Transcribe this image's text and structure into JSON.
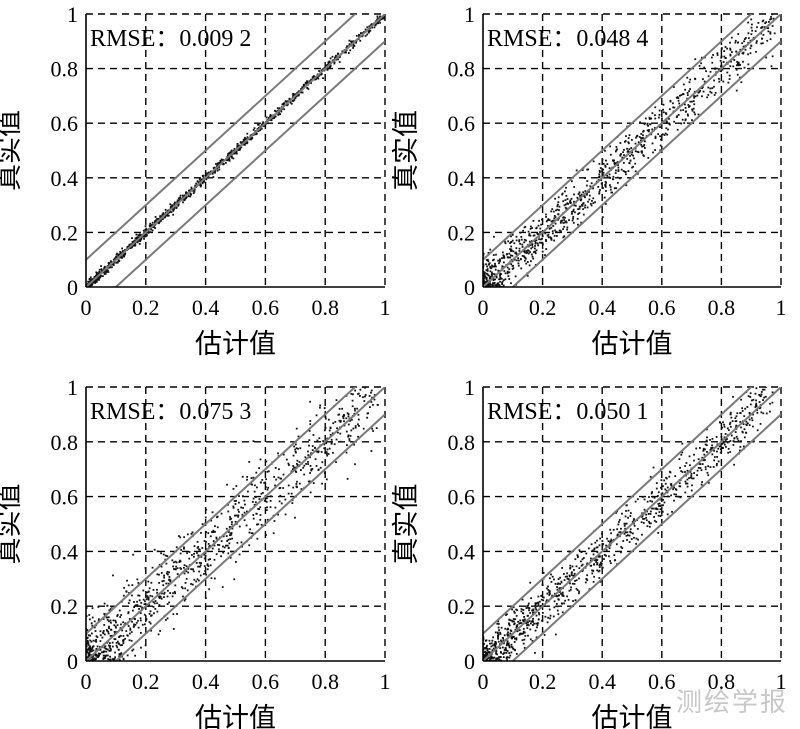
{
  "watermark": "测绘学报",
  "chart_data": [
    {
      "type": "scatter",
      "xlabel": "估计值",
      "ylabel": "真实值",
      "xlim": [
        0,
        1
      ],
      "ylim": [
        0,
        1
      ],
      "xticks": [
        "0",
        "0.2",
        "0.4",
        "0.6",
        "0.8",
        "1"
      ],
      "yticks": [
        "0",
        "0.2",
        "0.4",
        "0.6",
        "0.8",
        "1"
      ],
      "grid": true,
      "annotation": "RMSE：0.009 2",
      "rmse": 0.0092,
      "reference_lines": [
        {
          "intercept": 0.1,
          "slope": 1
        },
        {
          "intercept": 0,
          "slope": 1
        },
        {
          "intercept": -0.1,
          "slope": 1
        }
      ]
    },
    {
      "type": "scatter",
      "xlabel": "估计值",
      "ylabel": "真实值",
      "xlim": [
        0,
        1
      ],
      "ylim": [
        0,
        1
      ],
      "xticks": [
        "0",
        "0.2",
        "0.4",
        "0.6",
        "0.8",
        "1"
      ],
      "yticks": [
        "0",
        "0.2",
        "0.4",
        "0.6",
        "0.8",
        "1"
      ],
      "grid": true,
      "annotation": "RMSE：0.048 4",
      "rmse": 0.0484,
      "reference_lines": [
        {
          "intercept": 0.1,
          "slope": 1
        },
        {
          "intercept": 0,
          "slope": 1
        },
        {
          "intercept": -0.1,
          "slope": 1
        }
      ]
    },
    {
      "type": "scatter",
      "xlabel": "估计值",
      "ylabel": "真实值",
      "xlim": [
        0,
        1
      ],
      "ylim": [
        0,
        1
      ],
      "xticks": [
        "0",
        "0.2",
        "0.4",
        "0.6",
        "0.8",
        "1"
      ],
      "yticks": [
        "0",
        "0.2",
        "0.4",
        "0.6",
        "0.8",
        "1"
      ],
      "grid": true,
      "annotation": "RMSE：0.075 3",
      "rmse": 0.0753,
      "reference_lines": [
        {
          "intercept": 0.1,
          "slope": 1
        },
        {
          "intercept": 0,
          "slope": 1
        },
        {
          "intercept": -0.1,
          "slope": 1
        }
      ]
    },
    {
      "type": "scatter",
      "xlabel": "估计值",
      "ylabel": "真实值",
      "xlim": [
        0,
        1
      ],
      "ylim": [
        0,
        1
      ],
      "xticks": [
        "0",
        "0.2",
        "0.4",
        "0.6",
        "0.8",
        "1"
      ],
      "yticks": [
        "0",
        "0.2",
        "0.4",
        "0.6",
        "0.8",
        "1"
      ],
      "grid": true,
      "annotation": "RMSE：0.050 1",
      "rmse": 0.0501,
      "reference_lines": [
        {
          "intercept": 0.1,
          "slope": 1
        },
        {
          "intercept": 0,
          "slope": 1
        },
        {
          "intercept": -0.1,
          "slope": 1
        }
      ]
    }
  ]
}
